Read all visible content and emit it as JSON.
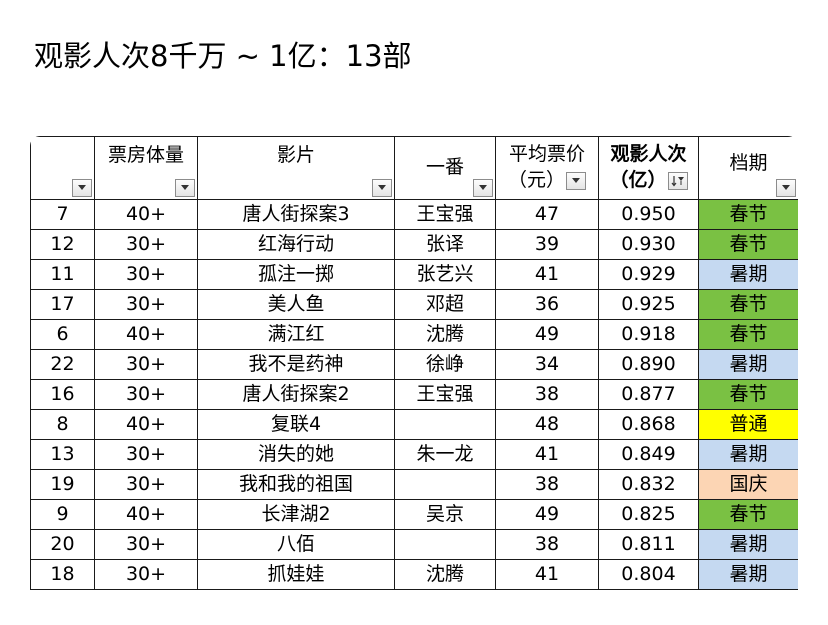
{
  "title": "观影人次8千万 ~ 1亿：13部",
  "table": {
    "headers": {
      "idx": "",
      "box": "票房体量",
      "film": "影片",
      "lead": "一番",
      "price_line1": "平均票价",
      "price_line2": "（元）",
      "viewers_line1": "观影人次",
      "viewers_line2": "（亿）",
      "period": "档期"
    },
    "rows": [
      {
        "idx": "7",
        "box": "40+",
        "film": "唐人街探案3",
        "lead": "王宝强",
        "price": "47",
        "viewers": "0.950",
        "period": "春节",
        "period_type": "chunjie"
      },
      {
        "idx": "12",
        "box": "30+",
        "film": "红海行动",
        "lead": "张译",
        "price": "39",
        "viewers": "0.930",
        "period": "春节",
        "period_type": "chunjie"
      },
      {
        "idx": "11",
        "box": "30+",
        "film": "孤注一掷",
        "lead": "张艺兴",
        "price": "41",
        "viewers": "0.929",
        "period": "暑期",
        "period_type": "shuqi"
      },
      {
        "idx": "17",
        "box": "30+",
        "film": "美人鱼",
        "lead": "邓超",
        "price": "36",
        "viewers": "0.925",
        "period": "春节",
        "period_type": "chunjie"
      },
      {
        "idx": "6",
        "box": "40+",
        "film": "满江红",
        "lead": "沈腾",
        "price": "49",
        "viewers": "0.918",
        "period": "春节",
        "period_type": "chunjie"
      },
      {
        "idx": "22",
        "box": "30+",
        "film": "我不是药神",
        "lead": "徐峥",
        "price": "34",
        "viewers": "0.890",
        "period": "暑期",
        "period_type": "shuqi"
      },
      {
        "idx": "16",
        "box": "30+",
        "film": "唐人街探案2",
        "lead": "王宝强",
        "price": "38",
        "viewers": "0.877",
        "period": "春节",
        "period_type": "chunjie"
      },
      {
        "idx": "8",
        "box": "40+",
        "film": "复联4",
        "lead": "",
        "price": "48",
        "viewers": "0.868",
        "period": "普通",
        "period_type": "putong"
      },
      {
        "idx": "13",
        "box": "30+",
        "film": "消失的她",
        "lead": "朱一龙",
        "price": "41",
        "viewers": "0.849",
        "period": "暑期",
        "period_type": "shuqi"
      },
      {
        "idx": "19",
        "box": "30+",
        "film": "我和我的祖国",
        "lead": "",
        "price": "38",
        "viewers": "0.832",
        "period": "国庆",
        "period_type": "guoqing"
      },
      {
        "idx": "9",
        "box": "40+",
        "film": "长津湖2",
        "lead": "吴京",
        "price": "49",
        "viewers": "0.825",
        "period": "春节",
        "period_type": "chunjie"
      },
      {
        "idx": "20",
        "box": "30+",
        "film": "八佰",
        "lead": "",
        "price": "38",
        "viewers": "0.811",
        "period": "暑期",
        "period_type": "shuqi"
      },
      {
        "idx": "18",
        "box": "30+",
        "film": "抓娃娃",
        "lead": "沈腾",
        "price": "41",
        "viewers": "0.804",
        "period": "暑期",
        "period_type": "shuqi"
      }
    ],
    "period_colors": {
      "chunjie": "#7ac143",
      "shuqi": "#c5d9f1",
      "putong": "#ffff00",
      "guoqing": "#fcd5b4"
    },
    "icons": {
      "filter_dropdown": "dropdown-arrow-icon",
      "sort_filter": "sort-descending-filter-icon"
    }
  }
}
